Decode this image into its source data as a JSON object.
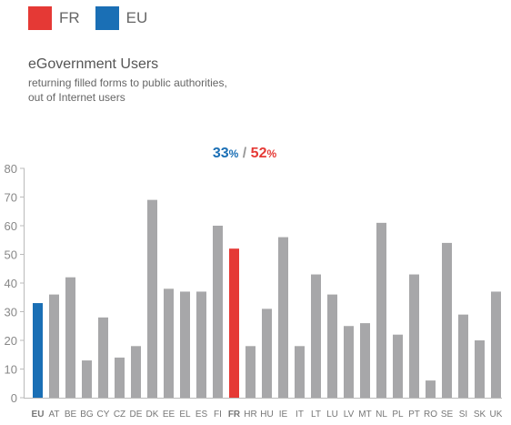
{
  "legend": {
    "items": [
      {
        "label": "FR",
        "color": "#e53935"
      },
      {
        "label": "EU",
        "color": "#1a6fb5"
      }
    ]
  },
  "header": {
    "title": "eGovernment Users",
    "subtitle_line1": "returning filled forms to public authorities,",
    "subtitle_line2": "out of Internet users"
  },
  "highlight": {
    "eu_value": "33",
    "eu_unit": "%",
    "separator": "/",
    "fr_value": "52",
    "fr_unit": "%"
  },
  "colors": {
    "default_bar": "#a7a7a9",
    "eu_bar": "#1a6fb5",
    "fr_bar": "#e53935",
    "axis": "#bbbbbb"
  },
  "chart_data": {
    "type": "bar",
    "title": "eGovernment Users",
    "subtitle": "returning filled forms to public authorities, out of Internet users",
    "xlabel": "",
    "ylabel": "",
    "ylim": [
      0,
      80
    ],
    "yticks": [
      0,
      10,
      20,
      30,
      40,
      50,
      60,
      70,
      80
    ],
    "grid": false,
    "categories": [
      "EU",
      "AT",
      "BE",
      "BG",
      "CY",
      "CZ",
      "DE",
      "DK",
      "EE",
      "EL",
      "ES",
      "FI",
      "FR",
      "HR",
      "HU",
      "IE",
      "IT",
      "LT",
      "LU",
      "LV",
      "MT",
      "NL",
      "PL",
      "PT",
      "RO",
      "SE",
      "SI",
      "SK",
      "UK"
    ],
    "values": [
      33,
      36,
      42,
      13,
      28,
      14,
      18,
      69,
      38,
      37,
      37,
      60,
      52,
      18,
      31,
      56,
      18,
      43,
      36,
      25,
      26,
      61,
      22,
      43,
      6,
      54,
      29,
      20,
      37
    ],
    "highlighted": {
      "EU": "eu",
      "FR": "fr"
    }
  }
}
